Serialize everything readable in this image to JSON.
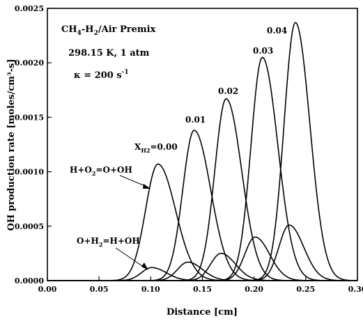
{
  "chart_data": {
    "type": "line",
    "xlabel": "Distance [cm]",
    "ylabel": "OH production rate [moles/cm³-s]",
    "xlim": [
      0.0,
      0.3
    ],
    "ylim": [
      0.0,
      0.0025
    ],
    "x_ticks": [
      "0.00",
      "0.05",
      "0.10",
      "0.15",
      "0.20",
      "0.25",
      "0.30"
    ],
    "y_ticks": [
      "0.0000",
      "0.0005",
      "0.0010",
      "0.0015",
      "0.0020",
      "0.0025"
    ],
    "grid": false,
    "annotation": {
      "line1_main": "CH",
      "line1_sub1": "4",
      "line1_mid": "-H",
      "line1_sub2": "2",
      "line1_end": "/Air Premix",
      "line2": "298.15 K, 1 atm",
      "line3_main": "κ = 200 s",
      "line3_sup": "-1"
    },
    "reaction_labels": [
      {
        "main": "H+O",
        "sub": "2",
        "rest": "=O+OH",
        "applies_to": "tall peaks"
      },
      {
        "main": "O+H",
        "sub": "2",
        "rest": "=H+OH",
        "applies_to": "small peaks"
      }
    ],
    "series_labels": [
      {
        "prefix": "X",
        "sub": "H2",
        "text": "=0.00"
      },
      {
        "text": "0.01"
      },
      {
        "text": "0.02"
      },
      {
        "text": "0.03"
      },
      {
        "text": "0.04"
      }
    ],
    "series": [
      {
        "x_H2": "0.00",
        "reaction": "H+O2=O+OH",
        "peak_x": 0.107,
        "peak_y": 0.00107,
        "width_left": 0.012,
        "width_right": 0.017
      },
      {
        "x_H2": "0.01",
        "reaction": "H+O2=O+OH",
        "peak_x": 0.142,
        "peak_y": 0.00138,
        "width_left": 0.011,
        "width_right": 0.016
      },
      {
        "x_H2": "0.02",
        "reaction": "H+O2=O+OH",
        "peak_x": 0.173,
        "peak_y": 0.00167,
        "width_left": 0.011,
        "width_right": 0.015
      },
      {
        "x_H2": "0.03",
        "reaction": "H+O2=O+OH",
        "peak_x": 0.208,
        "peak_y": 0.00205,
        "width_left": 0.011,
        "width_right": 0.015
      },
      {
        "x_H2": "0.04",
        "reaction": "H+O2=O+OH",
        "peak_x": 0.24,
        "peak_y": 0.00237,
        "width_left": 0.011,
        "width_right": 0.014
      },
      {
        "x_H2": "0.00",
        "reaction": "O+H2=H+OH",
        "peak_x": 0.101,
        "peak_y": 0.00012,
        "width_left": 0.01,
        "width_right": 0.014
      },
      {
        "x_H2": "0.01",
        "reaction": "O+H2=H+OH",
        "peak_x": 0.136,
        "peak_y": 0.00017,
        "width_left": 0.01,
        "width_right": 0.014
      },
      {
        "x_H2": "0.02",
        "reaction": "O+H2=H+OH",
        "peak_x": 0.168,
        "peak_y": 0.00025,
        "width_left": 0.01,
        "width_right": 0.014
      },
      {
        "x_H2": "0.03",
        "reaction": "O+H2=H+OH",
        "peak_x": 0.201,
        "peak_y": 0.0004,
        "width_left": 0.01,
        "width_right": 0.014
      },
      {
        "x_H2": "0.04",
        "reaction": "O+H2=H+OH",
        "peak_x": 0.234,
        "peak_y": 0.00051,
        "width_left": 0.01,
        "width_right": 0.014
      }
    ]
  }
}
